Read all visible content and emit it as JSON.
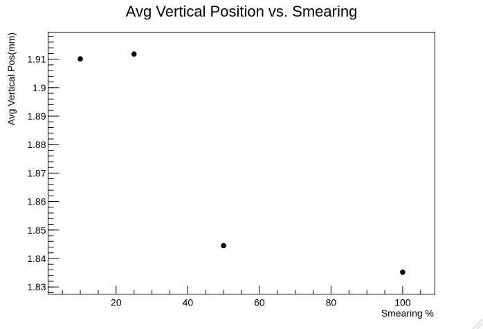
{
  "chart_data": {
    "type": "scatter",
    "title": "Avg Vertical Position vs. Smearing",
    "xlabel": "Smearing %",
    "ylabel": "Avg Vertical Pos(mm)",
    "xlim": [
      1,
      109
    ],
    "ylim": [
      1.8275,
      1.9195
    ],
    "x_ticks": [
      20,
      40,
      60,
      80,
      100
    ],
    "y_ticks": [
      1.83,
      1.84,
      1.85,
      1.86,
      1.87,
      1.88,
      1.89,
      1.9,
      1.91
    ],
    "y_tick_labels": [
      "1.83",
      "1.84",
      "1.85",
      "1.86",
      "1.87",
      "1.88",
      "1.89",
      "1.9",
      "1.91"
    ],
    "grid": false,
    "legend": "none",
    "marker_color": "#000000",
    "series": [
      {
        "x": [
          10,
          25,
          50,
          100
        ],
        "y": [
          1.9101,
          1.9118,
          1.8445,
          1.8352
        ]
      }
    ]
  }
}
